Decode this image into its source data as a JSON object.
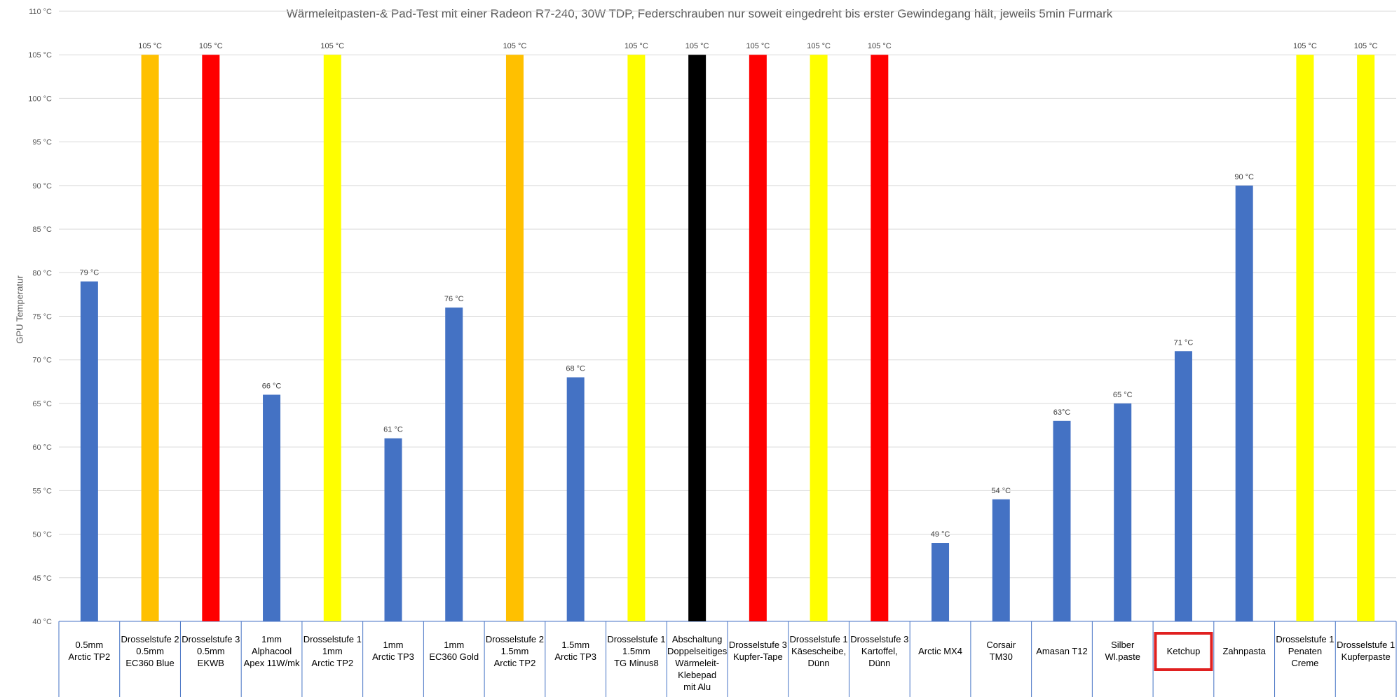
{
  "chart_data": {
    "type": "bar",
    "title": "Wärmeleitpasten-& Pad-Test mit einer Radeon R7-240, 30W TDP, Federschrauben nur soweit eingedreht bis erster Gewindegang hält, jeweils 5min Furmark",
    "ylabel": "GPU Temperatur",
    "xlabel": "",
    "ylim": [
      40,
      110
    ],
    "ytick_step": 5,
    "ytick_labels": [
      "40 °C",
      "45 °C",
      "50 °C",
      "55 °C",
      "60 °C",
      "65 °C",
      "70 °C",
      "75 °C",
      "80 °C",
      "85 °C",
      "90 °C",
      "95 °C",
      "100 °C",
      "105 °C",
      "110 °C"
    ],
    "grid": true,
    "legend": "none",
    "colors": {
      "blue": "#4472c4",
      "orange": "#ffc000",
      "red": "#ff0000",
      "yellow": "#ffff00",
      "black": "#000000",
      "highlight_box": "#e02020"
    },
    "categories": [
      [
        "0.5mm",
        "Arctic TP2"
      ],
      [
        "Drosselstufe 2",
        "0.5mm",
        "EC360 Blue"
      ],
      [
        "Drosselstufe 3",
        "0.5mm",
        "EKWB"
      ],
      [
        "1mm",
        "Alphacool",
        "Apex 11W/mk"
      ],
      [
        "Drosselstufe 1",
        "1mm",
        "Arctic TP2"
      ],
      [
        "1mm",
        "Arctic TP3"
      ],
      [
        "1mm",
        "EC360 Gold"
      ],
      [
        "Drosselstufe 2",
        "1.5mm",
        "Arctic TP2"
      ],
      [
        "1.5mm",
        "Arctic TP3"
      ],
      [
        "Drosselstufe 1",
        "1.5mm",
        "TG Minus8"
      ],
      [
        "Abschaltung",
        "Doppelseitiges",
        "Wärmeleit-",
        "Klebepad",
        "mit Alu"
      ],
      [
        "Drosselstufe 3",
        "Kupfer-Tape"
      ],
      [
        "Drosselstufe 1",
        "Käsescheibe,",
        "Dünn"
      ],
      [
        "Drosselstufe 3",
        "Kartoffel,",
        "Dünn"
      ],
      [
        "Arctic MX4"
      ],
      [
        "Corsair",
        "TM30"
      ],
      [
        "Amasan T12"
      ],
      [
        "Silber",
        "Wl.paste"
      ],
      [
        "Ketchup"
      ],
      [
        "Zahnpasta"
      ],
      [
        "Drosselstufe 1",
        "Penaten",
        "Creme"
      ],
      [
        "Drosselstufe 1",
        "Kupferpaste"
      ]
    ],
    "values": [
      79,
      105,
      105,
      66,
      105,
      61,
      76,
      105,
      68,
      105,
      105,
      105,
      105,
      105,
      49,
      54,
      63,
      65,
      71,
      90,
      105,
      105
    ],
    "data_labels": [
      "79 °C",
      "105 °C",
      "105 °C",
      "66 °C",
      "105 °C",
      "61 °C",
      "76 °C",
      "105 °C",
      "68 °C",
      "105 °C",
      "105 °C",
      "105 °C",
      "105 °C",
      "105 °C",
      "49 °C",
      "54 °C",
      "63°C",
      "65 °C",
      "71 °C",
      "90 °C",
      "105 °C",
      "105 °C"
    ],
    "bar_colors": [
      "blue",
      "orange",
      "red",
      "blue",
      "yellow",
      "blue",
      "blue",
      "orange",
      "blue",
      "yellow",
      "black",
      "red",
      "yellow",
      "red",
      "blue",
      "blue",
      "blue",
      "blue",
      "blue",
      "blue",
      "yellow",
      "yellow"
    ],
    "highlighted_category": "Ketchup"
  }
}
